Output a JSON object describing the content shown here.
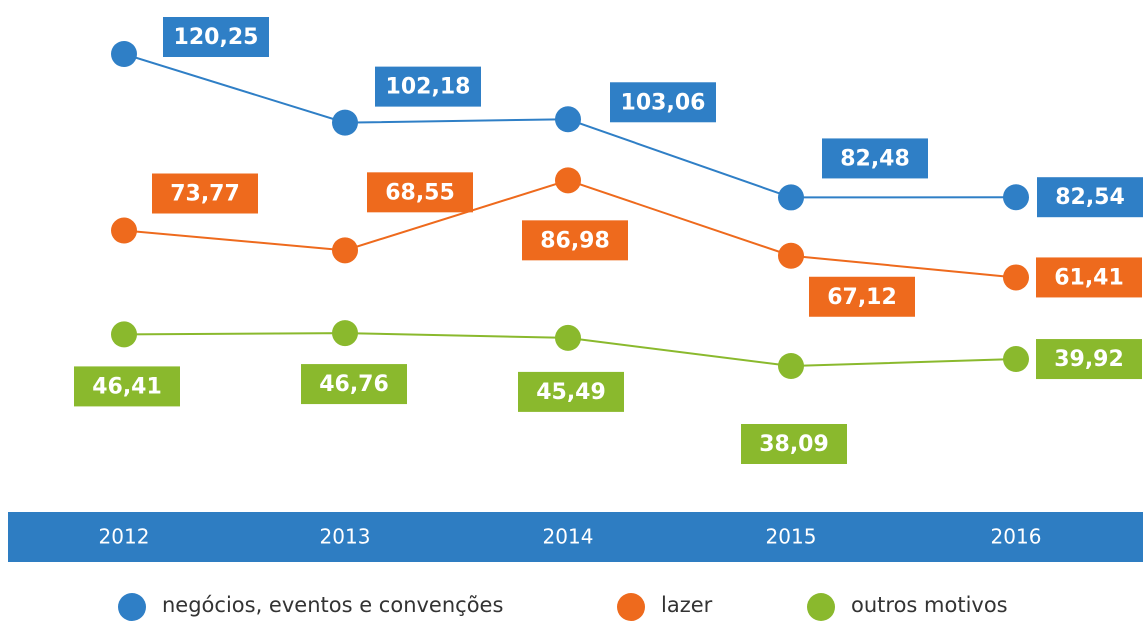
{
  "chart_data": {
    "type": "line",
    "categories": [
      "2012",
      "2013",
      "2014",
      "2015",
      "2016"
    ],
    "series": [
      {
        "name": "negócios, eventos e convenções",
        "color": "#2f7fc6",
        "values": [
          120.25,
          102.18,
          103.06,
          82.48,
          82.54
        ],
        "value_labels": [
          "120,25",
          "102,18",
          "103,06",
          "82,48",
          "82,54"
        ]
      },
      {
        "name": "lazer",
        "color": "#ee6a1d",
        "values": [
          73.77,
          68.55,
          86.98,
          67.12,
          61.41
        ],
        "value_labels": [
          "73,77",
          "68,55",
          "86,98",
          "67,12",
          "61,41"
        ]
      },
      {
        "name": "outros motivos",
        "color": "#8ab92d",
        "values": [
          46.41,
          46.76,
          45.49,
          38.09,
          39.92
        ],
        "value_labels": [
          "46,41",
          "46,76",
          "45,49",
          "38,09",
          "39,92"
        ]
      }
    ],
    "category_band_color": "#2e7dc2"
  }
}
